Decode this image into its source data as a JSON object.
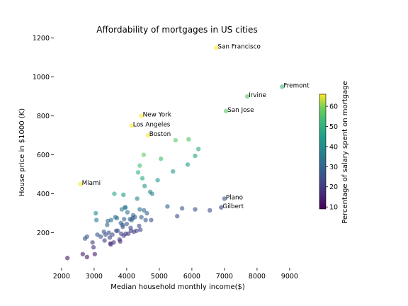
{
  "chart_data": {
    "type": "scatter",
    "title": "Affordability of mortgages in US cities",
    "xlabel": "Median household monthly income($)",
    "ylabel": "House price in $1000 (K)",
    "xlim": [
      1850,
      9350
    ],
    "ylim": [
      20,
      1250
    ],
    "xticks": [
      2000,
      3000,
      4000,
      5000,
      6000,
      7000,
      8000,
      9000
    ],
    "yticks": [
      200,
      400,
      600,
      800,
      1000,
      1200
    ],
    "grid": false,
    "colorbar": {
      "label": "Percentage of salary spent on mortgage",
      "min": 9,
      "max": 66,
      "ticks": [
        10,
        20,
        30,
        40,
        50,
        60
      ],
      "colormap": "viridis"
    },
    "points": [
      {
        "x": 2180,
        "y": 70,
        "c": 13
      },
      {
        "x": 2650,
        "y": 90,
        "c": 14
      },
      {
        "x": 2780,
        "y": 75,
        "c": 13
      },
      {
        "x": 2720,
        "y": 170,
        "c": 26
      },
      {
        "x": 2780,
        "y": 180,
        "c": 27
      },
      {
        "x": 2950,
        "y": 150,
        "c": 21
      },
      {
        "x": 2980,
        "y": 125,
        "c": 18
      },
      {
        "x": 3020,
        "y": 90,
        "c": 14
      },
      {
        "x": 3050,
        "y": 300,
        "c": 40
      },
      {
        "x": 3070,
        "y": 265,
        "c": 36
      },
      {
        "x": 3100,
        "y": 190,
        "c": 26
      },
      {
        "x": 3200,
        "y": 180,
        "c": 24
      },
      {
        "x": 3300,
        "y": 205,
        "c": 27
      },
      {
        "x": 3320,
        "y": 160,
        "c": 21
      },
      {
        "x": 3350,
        "y": 190,
        "c": 25
      },
      {
        "x": 3400,
        "y": 240,
        "c": 30
      },
      {
        "x": 3420,
        "y": 260,
        "c": 32
      },
      {
        "x": 3450,
        "y": 200,
        "c": 25
      },
      {
        "x": 3480,
        "y": 175,
        "c": 22
      },
      {
        "x": 3500,
        "y": 145,
        "c": 18
      },
      {
        "x": 3510,
        "y": 140,
        "c": 17
      },
      {
        "x": 3520,
        "y": 265,
        "c": 32
      },
      {
        "x": 3560,
        "y": 190,
        "c": 23
      },
      {
        "x": 3600,
        "y": 150,
        "c": 18
      },
      {
        "x": 3620,
        "y": 400,
        "c": 47
      },
      {
        "x": 3650,
        "y": 280,
        "c": 33
      },
      {
        "x": 3680,
        "y": 210,
        "c": 25
      },
      {
        "x": 3700,
        "y": 275,
        "c": 32
      },
      {
        "x": 3720,
        "y": 210,
        "c": 25
      },
      {
        "x": 3780,
        "y": 165,
        "c": 19
      },
      {
        "x": 3800,
        "y": 155,
        "c": 18
      },
      {
        "x": 3820,
        "y": 250,
        "c": 28
      },
      {
        "x": 3830,
        "y": 195,
        "c": 22
      },
      {
        "x": 3850,
        "y": 320,
        "c": 36
      },
      {
        "x": 3870,
        "y": 240,
        "c": 27
      },
      {
        "x": 3880,
        "y": 230,
        "c": 26
      },
      {
        "x": 3900,
        "y": 395,
        "c": 44
      },
      {
        "x": 3910,
        "y": 185,
        "c": 20
      },
      {
        "x": 3920,
        "y": 270,
        "c": 30
      },
      {
        "x": 3950,
        "y": 330,
        "c": 36
      },
      {
        "x": 3960,
        "y": 330,
        "c": 36
      },
      {
        "x": 3970,
        "y": 195,
        "c": 21
      },
      {
        "x": 4000,
        "y": 245,
        "c": 27
      },
      {
        "x": 4020,
        "y": 305,
        "c": 33
      },
      {
        "x": 4050,
        "y": 195,
        "c": 21
      },
      {
        "x": 4100,
        "y": 270,
        "c": 29
      },
      {
        "x": 4120,
        "y": 225,
        "c": 24
      },
      {
        "x": 4130,
        "y": 210,
        "c": 22
      },
      {
        "x": 4150,
        "y": 265,
        "c": 28
      },
      {
        "x": 4180,
        "y": 275,
        "c": 29
      },
      {
        "x": 4200,
        "y": 290,
        "c": 30
      },
      {
        "x": 4220,
        "y": 205,
        "c": 21
      },
      {
        "x": 4250,
        "y": 280,
        "c": 29
      },
      {
        "x": 4300,
        "y": 210,
        "c": 22
      },
      {
        "x": 4320,
        "y": 375,
        "c": 38
      },
      {
        "x": 4350,
        "y": 510,
        "c": 51
      },
      {
        "x": 4380,
        "y": 235,
        "c": 24
      },
      {
        "x": 4400,
        "y": 545,
        "c": 54
      },
      {
        "x": 4400,
        "y": 320,
        "c": 32
      },
      {
        "x": 4420,
        "y": 215,
        "c": 22
      },
      {
        "x": 4450,
        "y": 280,
        "c": 28
      },
      {
        "x": 4480,
        "y": 480,
        "c": 47
      },
      {
        "x": 4520,
        "y": 600,
        "c": 58
      },
      {
        "x": 4530,
        "y": 315,
        "c": 31
      },
      {
        "x": 4550,
        "y": 440,
        "c": 43
      },
      {
        "x": 4580,
        "y": 265,
        "c": 26
      },
      {
        "x": 4620,
        "y": 300,
        "c": 29
      },
      {
        "x": 4650,
        "y": 700,
        "c": 66
      },
      {
        "x": 4720,
        "y": 410,
        "c": 39
      },
      {
        "x": 4750,
        "y": 265,
        "c": 25
      },
      {
        "x": 4780,
        "y": 400,
        "c": 38
      },
      {
        "x": 4950,
        "y": 470,
        "c": 43
      },
      {
        "x": 5050,
        "y": 580,
        "c": 53
      },
      {
        "x": 5250,
        "y": 335,
        "c": 30
      },
      {
        "x": 5420,
        "y": 515,
        "c": 44
      },
      {
        "x": 5500,
        "y": 675,
        "c": 57
      },
      {
        "x": 5550,
        "y": 285,
        "c": 24
      },
      {
        "x": 5700,
        "y": 325,
        "c": 27
      },
      {
        "x": 5870,
        "y": 550,
        "c": 45
      },
      {
        "x": 5900,
        "y": 680,
        "c": 55
      },
      {
        "x": 6100,
        "y": 320,
        "c": 25
      },
      {
        "x": 6100,
        "y": 595,
        "c": 46
      },
      {
        "x": 6200,
        "y": 630,
        "c": 48
      },
      {
        "x": 6550,
        "y": 315,
        "c": 23
      },
      {
        "x": 6900,
        "y": 330,
        "c": 23
      },
      {
        "x": 7000,
        "y": 375,
        "c": 26
      },
      {
        "x": 7050,
        "y": 825,
        "c": 56
      },
      {
        "x": 7700,
        "y": 900,
        "c": 56
      },
      {
        "x": 8770,
        "y": 950,
        "c": 52
      },
      {
        "x": 2580,
        "y": 450,
        "c": 66
      },
      {
        "x": 4150,
        "y": 750,
        "c": 66
      },
      {
        "x": 4450,
        "y": 800,
        "c": 66
      },
      {
        "x": 6750,
        "y": 1150,
        "c": 66
      }
    ],
    "annotations": [
      {
        "text": "San Francisco",
        "x": 6750,
        "y": 1150
      },
      {
        "text": "Fremont",
        "x": 8770,
        "y": 950
      },
      {
        "text": "Irvine",
        "x": 7700,
        "y": 900
      },
      {
        "text": "San Jose",
        "x": 7050,
        "y": 825
      },
      {
        "text": "New York",
        "x": 4450,
        "y": 800
      },
      {
        "text": "Los Angeles",
        "x": 4150,
        "y": 750
      },
      {
        "text": "Boston",
        "x": 4650,
        "y": 700
      },
      {
        "text": "Miami",
        "x": 2580,
        "y": 450
      },
      {
        "text": "Plano",
        "x": 7000,
        "y": 375
      },
      {
        "text": "Gilbert",
        "x": 6900,
        "y": 330
      }
    ]
  }
}
